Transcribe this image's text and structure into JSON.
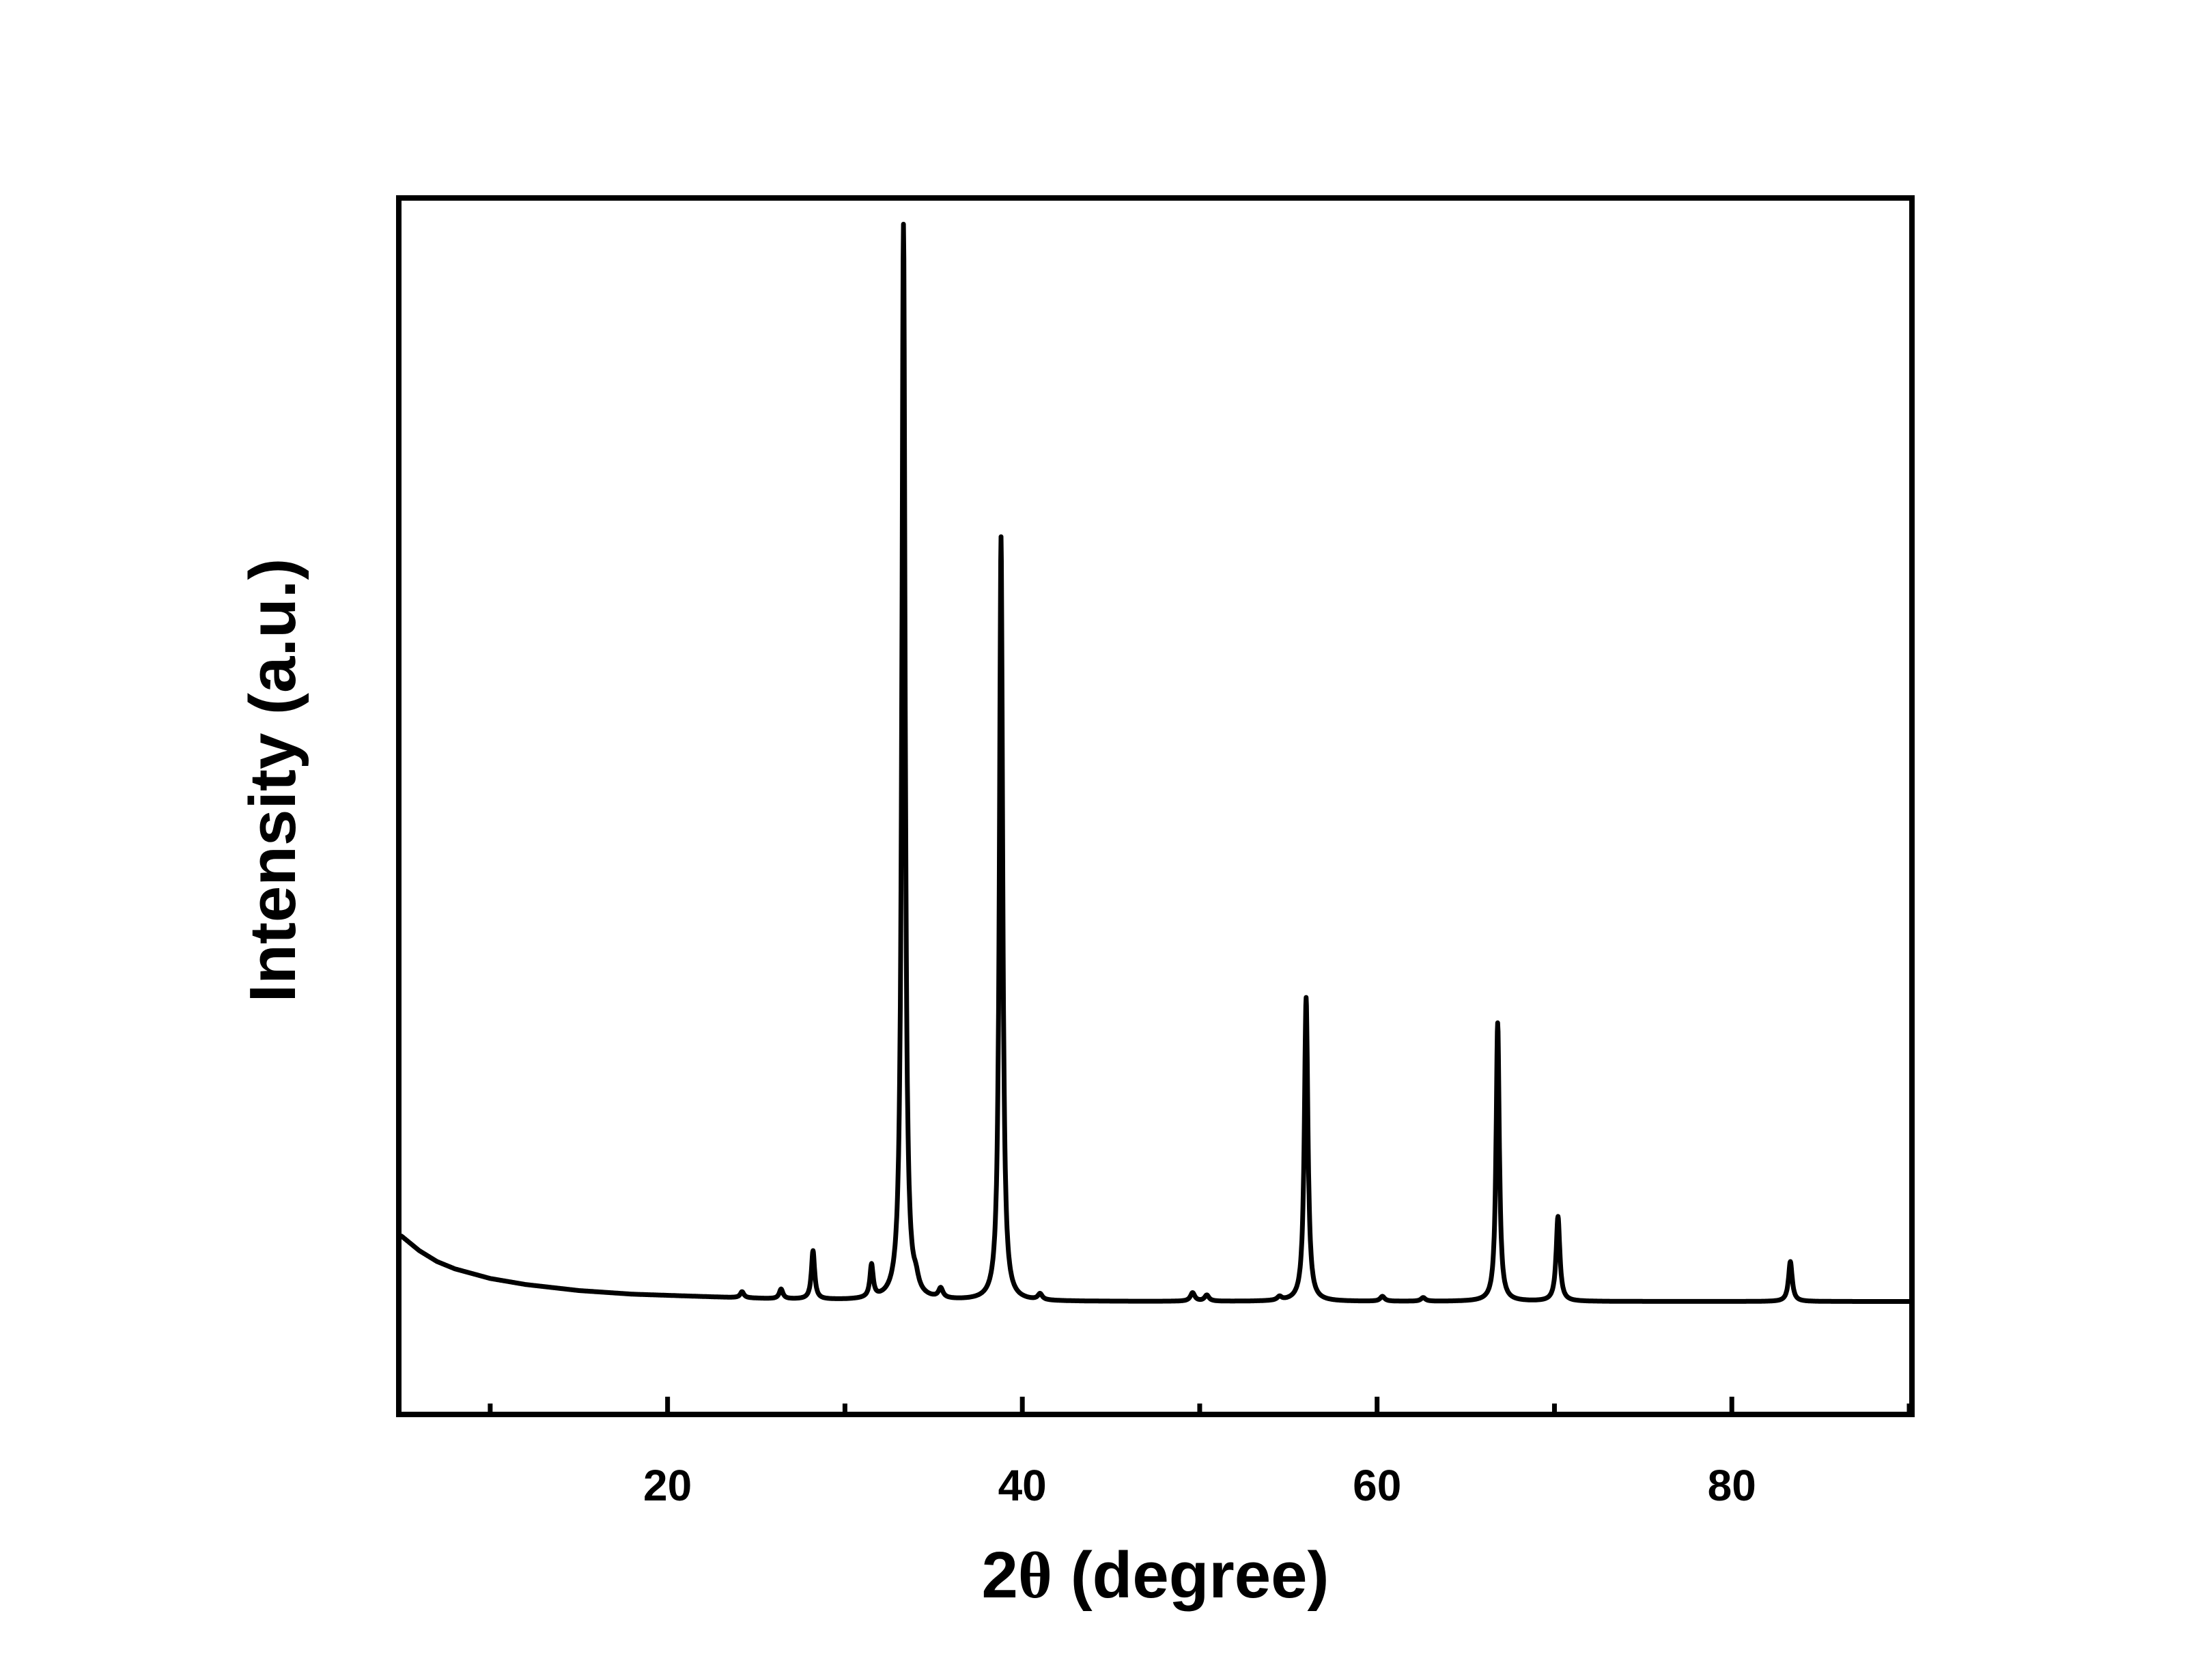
{
  "chart_data": {
    "type": "line",
    "xlabel_prefix": "2",
    "xlabel_symbol": "θ",
    "xlabel_suffix": " (degree)",
    "ylabel": "Intensity (a.u.)",
    "xlim": [
      5,
      90
    ],
    "ylim": [
      0,
      100
    ],
    "x_major_ticks": [
      20,
      40,
      60,
      80
    ],
    "x_minor_ticks": [
      10,
      30,
      50,
      70,
      90
    ],
    "x_tick_labels": [
      "20",
      "40",
      "60",
      "80"
    ],
    "y_ticks_shown": false,
    "grid": false,
    "legend": "none",
    "line_color": "#000000",
    "background": {
      "points": [
        [
          5,
          14.5
        ],
        [
          6,
          13.3
        ],
        [
          7,
          12.4
        ],
        [
          8,
          11.8
        ],
        [
          10,
          11.0
        ],
        [
          12,
          10.5
        ],
        [
          15,
          10.0
        ],
        [
          18,
          9.7
        ],
        [
          22,
          9.5
        ],
        [
          26,
          9.3
        ],
        [
          30,
          9.2
        ],
        [
          40,
          9.1
        ],
        [
          60,
          9.1
        ],
        [
          90,
          9.1
        ]
      ]
    },
    "peaks": [
      {
        "x": 24.2,
        "height": 0.5,
        "width": 0.25
      },
      {
        "x": 26.4,
        "height": 0.8,
        "width": 0.25
      },
      {
        "x": 28.2,
        "height": 4.0,
        "width": 0.22
      },
      {
        "x": 31.5,
        "height": 2.7,
        "width": 0.22
      },
      {
        "x": 33.3,
        "height": 88.8,
        "width": 0.22
      },
      {
        "x": 34.0,
        "height": 0.9,
        "width": 0.35
      },
      {
        "x": 35.4,
        "height": 0.8,
        "width": 0.3
      },
      {
        "x": 38.8,
        "height": 63.1,
        "width": 0.22
      },
      {
        "x": 41.0,
        "height": 0.5,
        "width": 0.3
      },
      {
        "x": 49.6,
        "height": 0.7,
        "width": 0.3
      },
      {
        "x": 50.4,
        "height": 0.5,
        "width": 0.3
      },
      {
        "x": 54.5,
        "height": 0.3,
        "width": 0.3
      },
      {
        "x": 56.0,
        "height": 25.1,
        "width": 0.24
      },
      {
        "x": 60.3,
        "height": 0.4,
        "width": 0.3
      },
      {
        "x": 62.6,
        "height": 0.3,
        "width": 0.3
      },
      {
        "x": 66.8,
        "height": 23.0,
        "width": 0.22
      },
      {
        "x": 70.2,
        "height": 7.0,
        "width": 0.25
      },
      {
        "x": 83.3,
        "height": 3.3,
        "width": 0.25
      }
    ]
  }
}
